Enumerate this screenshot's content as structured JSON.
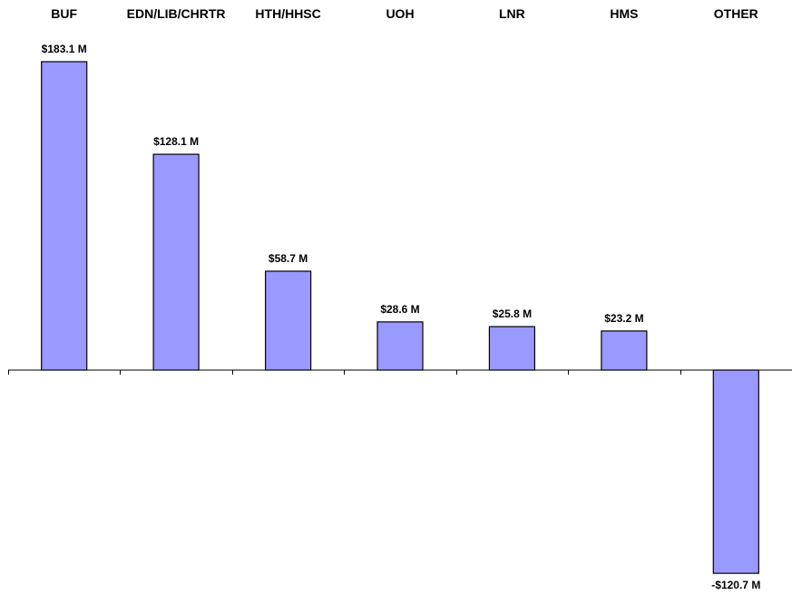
{
  "chart_data": {
    "type": "bar",
    "categories": [
      "BUF",
      "EDN/LIB/CHRTR",
      "HTH/HHSC",
      "UOH",
      "LNR",
      "HMS",
      "OTHER"
    ],
    "values": [
      183.1,
      128.1,
      58.7,
      28.6,
      25.8,
      23.2,
      -120.7
    ],
    "data_labels": [
      "$183.1 M",
      "$128.1 M",
      "$58.7 M",
      "$28.6 M",
      "$25.8 M",
      "$23.2 M",
      "-$120.7 M"
    ],
    "category_axis_position": "top",
    "grid": false,
    "legend": "none",
    "colors": {
      "bar_fill": "#9999ff",
      "bar_stroke": "#000000",
      "axis": "#000000"
    }
  }
}
